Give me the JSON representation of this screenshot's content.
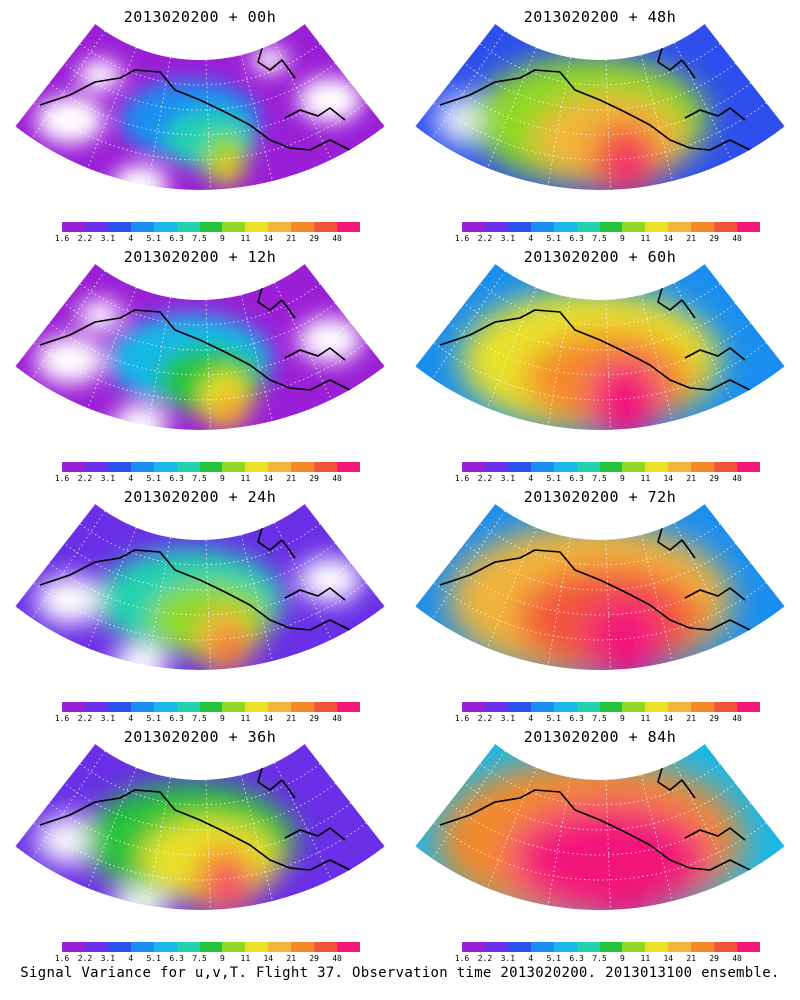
{
  "panels": [
    {
      "title": "2013020200 + 00h",
      "level": 0
    },
    {
      "title": "2013020200 + 48h",
      "level": 4
    },
    {
      "title": "2013020200 + 12h",
      "level": 1
    },
    {
      "title": "2013020200 + 60h",
      "level": 5
    },
    {
      "title": "2013020200 + 24h",
      "level": 2
    },
    {
      "title": "2013020200 + 72h",
      "level": 6
    },
    {
      "title": "2013020200 + 36h",
      "level": 3
    },
    {
      "title": "2013020200 + 84h",
      "level": 7
    }
  ],
  "colorbar": {
    "labels": [
      "1.6",
      "2.2",
      "3.1",
      "4",
      "5.1",
      "6.3",
      "7.5",
      "9",
      "11",
      "14",
      "21",
      "29",
      "40"
    ],
    "colors": [
      "#9a1fd6",
      "#6a2fe6",
      "#2e4fee",
      "#1a8ef0",
      "#19b8e8",
      "#20d2b0",
      "#22c43a",
      "#8fd828",
      "#e9e12a",
      "#f2b53a",
      "#f48a2a",
      "#f2553a",
      "#f2187a"
    ]
  },
  "footer": "Signal Variance for u,v,T. Flight 37. Observation time 2013020200. 2013013100 ensemble."
}
